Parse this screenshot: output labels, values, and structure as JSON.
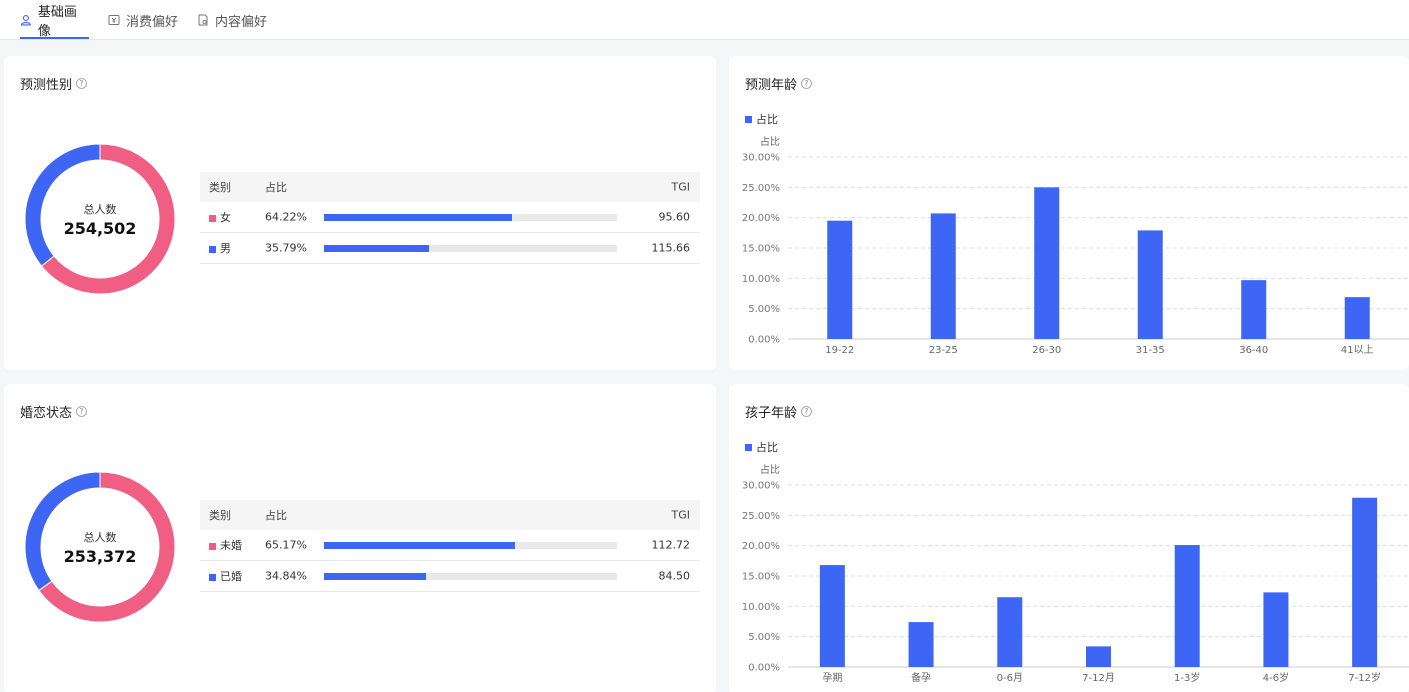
{
  "tabs": [
    {
      "label": "基础画像",
      "active": true
    },
    {
      "label": "消费偏好",
      "active": false
    },
    {
      "label": "内容偏好",
      "active": false
    }
  ],
  "colors": {
    "primary": "#3d66f5",
    "female": "#f05f83",
    "male": "#3d66f5"
  },
  "gender": {
    "title": "预测性别",
    "total_label": "总人数",
    "total": "254,502",
    "headers": {
      "category": "类别",
      "ratio": "占比",
      "tgi": "TGI"
    },
    "rows": [
      {
        "name": "女",
        "pct": "64.22%",
        "value": 64.22,
        "tgi": "95.60",
        "color": "#f05f83"
      },
      {
        "name": "男",
        "pct": "35.79%",
        "value": 35.79,
        "tgi": "115.66",
        "color": "#3d66f5"
      }
    ]
  },
  "marital": {
    "title": "婚恋状态",
    "total_label": "总人数",
    "total": "253,372",
    "headers": {
      "category": "类别",
      "ratio": "占比",
      "tgi": "TGI"
    },
    "rows": [
      {
        "name": "未婚",
        "pct": "65.17%",
        "value": 65.17,
        "tgi": "112.72",
        "color": "#f05f83"
      },
      {
        "name": "已婚",
        "pct": "34.84%",
        "value": 34.84,
        "tgi": "84.50",
        "color": "#3d66f5"
      }
    ]
  },
  "age_card": {
    "title": "预测年龄",
    "legend": "占比"
  },
  "child_card": {
    "title": "孩子年龄",
    "legend": "占比"
  },
  "chart_data": [
    {
      "type": "bar",
      "title": "预测年龄",
      "ylabel": "占比",
      "categories": [
        "19-22",
        "23-25",
        "26-30",
        "31-35",
        "36-40",
        "41以上"
      ],
      "values": [
        19.5,
        20.7,
        25.0,
        17.9,
        9.7,
        6.9
      ],
      "yticks": [
        "0.00%",
        "5.00%",
        "10.00%",
        "15.00%",
        "20.00%",
        "25.00%",
        "30.00%"
      ],
      "ylim": [
        0,
        30
      ],
      "grid": true,
      "legend": "top-left"
    },
    {
      "type": "bar",
      "title": "孩子年龄",
      "ylabel": "占比",
      "categories": [
        "孕期",
        "备孕",
        "0-6月",
        "7-12月",
        "1-3岁",
        "4-6岁",
        "7-12岁"
      ],
      "values": [
        16.8,
        7.4,
        11.5,
        3.4,
        20.1,
        12.3,
        27.9
      ],
      "yticks": [
        "0.00%",
        "5.00%",
        "10.00%",
        "15.00%",
        "20.00%",
        "25.00%",
        "30.00%"
      ],
      "ylim": [
        0,
        30
      ],
      "grid": true,
      "legend": "top-left"
    }
  ]
}
